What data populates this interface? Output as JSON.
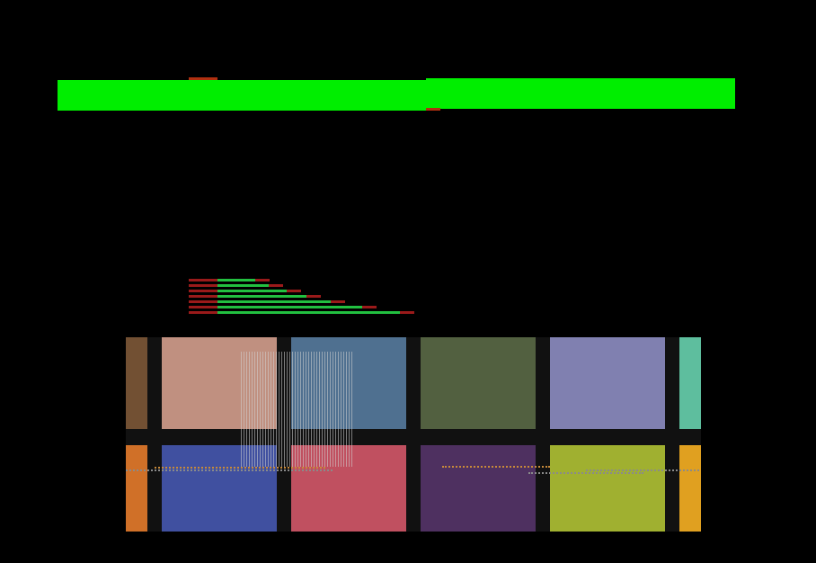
{
  "colors": {
    "background": "#000000",
    "bright_bar": "#00ee00",
    "tick": "#b03010",
    "mini_red": "#9a1a1a",
    "mini_green": "#22c040",
    "grid_gap": "#111111",
    "stripe": "#d2d2d2",
    "dots_gray": "#8a8a8a",
    "dots_orange": "#c88a3a"
  },
  "tiles": [
    {
      "id": "brown-strip",
      "color": "#725033"
    },
    {
      "id": "tan",
      "color": "#c09080"
    },
    {
      "id": "steel-blue",
      "color": "#4f7090"
    },
    {
      "id": "olive",
      "color": "#526040"
    },
    {
      "id": "lavender",
      "color": "#8080b0"
    },
    {
      "id": "teal-strip",
      "color": "#5ebe9e"
    },
    {
      "id": "orange-strip",
      "color": "#d07028"
    },
    {
      "id": "royal-blue",
      "color": "#4050a0"
    },
    {
      "id": "rose",
      "color": "#c05060"
    },
    {
      "id": "purple",
      "color": "#4e3060"
    },
    {
      "id": "lime",
      "color": "#a0b030"
    },
    {
      "id": "gold-strip",
      "color": "#e0a020"
    }
  ],
  "mini_bars": [
    {
      "green": 0.17,
      "tip": 0.05
    },
    {
      "green": 0.23,
      "tip": 0.05
    },
    {
      "green": 0.31,
      "tip": 0.05
    },
    {
      "green": 0.4,
      "tip": 0.05
    },
    {
      "green": 0.51,
      "tip": 0.05
    },
    {
      "green": 0.65,
      "tip": 0.05
    },
    {
      "green": 0.82,
      "tip": 0.05
    }
  ]
}
